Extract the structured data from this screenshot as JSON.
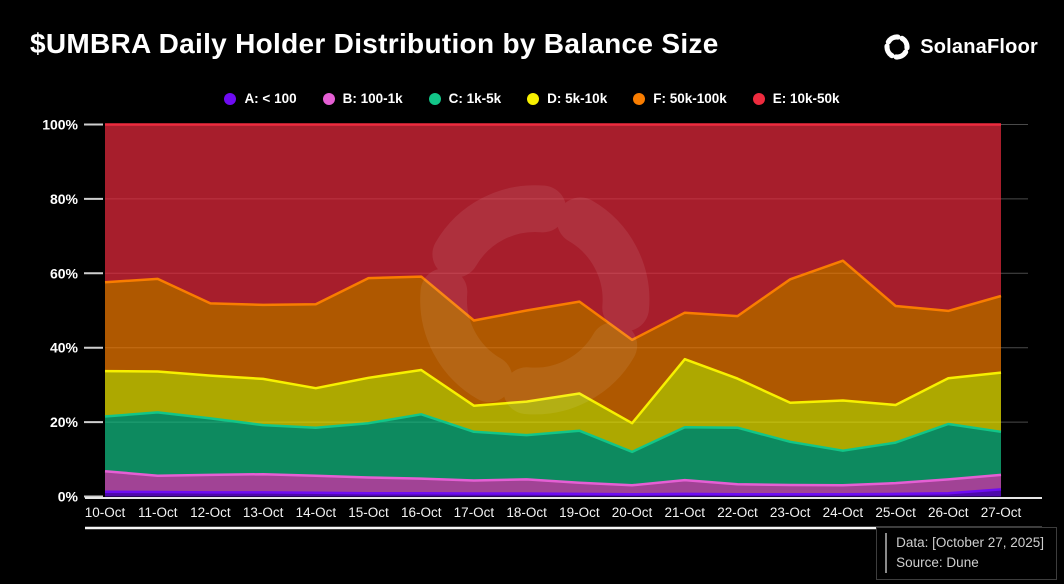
{
  "header": {
    "title": "$UMBRA Daily Holder Distribution by Balance Size",
    "brand": "SolanaFloor"
  },
  "legend": [
    {
      "label": "A: < 100",
      "color": "#6E0BF2"
    },
    {
      "label": "B: 100-1k",
      "color": "#E55FD4"
    },
    {
      "label": "C: 1k-5k",
      "color": "#12C588"
    },
    {
      "label": "D: 5k-10k",
      "color": "#F7F000"
    },
    {
      "label": "F: 50k-100k",
      "color": "#F97D00"
    },
    {
      "label": "E: 10k-50k",
      "color": "#EE2B3E"
    }
  ],
  "chart_data": {
    "type": "area",
    "stacked": true,
    "unit": "%",
    "title": "$UMBRA Daily Holder Distribution by Balance Size",
    "xlabel": "",
    "ylabel": "",
    "ylim": [
      0,
      100
    ],
    "grid": true,
    "legend_position": "top",
    "y_ticks": [
      {
        "label": "0%",
        "value": 0
      },
      {
        "label": "20%",
        "value": 20
      },
      {
        "label": "40%",
        "value": 40
      },
      {
        "label": "60%",
        "value": 60
      },
      {
        "label": "80%",
        "value": 80
      },
      {
        "label": "100%",
        "value": 100
      }
    ],
    "x": [
      "10-Oct",
      "11-Oct",
      "12-Oct",
      "13-Oct",
      "14-Oct",
      "15-Oct",
      "16-Oct",
      "17-Oct",
      "18-Oct",
      "19-Oct",
      "20-Oct",
      "21-Oct",
      "22-Oct",
      "23-Oct",
      "24-Oct",
      "25-Oct",
      "26-Oct",
      "27-Oct"
    ],
    "series": [
      {
        "name": "A: < 100",
        "color": "#6E0BF2",
        "values": [
          1.3,
          1.2,
          1.1,
          1.1,
          1.0,
          0.9,
          0.9,
          0.8,
          0.8,
          0.7,
          0.6,
          0.7,
          0.6,
          0.6,
          0.6,
          0.7,
          0.9,
          1.9
        ]
      },
      {
        "name": "B: 100-1k",
        "color": "#E55FD4",
        "values": [
          5.5,
          4.4,
          4.7,
          4.9,
          4.6,
          4.2,
          3.9,
          3.5,
          3.8,
          3.0,
          2.4,
          3.7,
          2.7,
          2.5,
          2.4,
          2.9,
          3.7,
          3.9
        ]
      },
      {
        "name": "C: 1k-5k",
        "color": "#12C588",
        "values": [
          14.7,
          17.0,
          15.2,
          13.2,
          12.9,
          14.6,
          17.3,
          13.1,
          11.9,
          14.0,
          9.0,
          14.2,
          15.2,
          11.6,
          9.3,
          10.9,
          14.9,
          11.6
        ]
      },
      {
        "name": "D: 5k-10k",
        "color": "#F7F000",
        "values": [
          12.2,
          11.0,
          11.5,
          12.4,
          10.6,
          12.2,
          11.9,
          7.0,
          9.0,
          10.0,
          7.7,
          18.3,
          13.2,
          10.5,
          13.5,
          10.1,
          12.3,
          15.9
        ]
      },
      {
        "name": "F: 50k-100k",
        "color": "#F97D00",
        "values": [
          23.9,
          24.9,
          19.4,
          19.9,
          22.6,
          26.8,
          25.1,
          22.9,
          24.5,
          24.7,
          22.4,
          12.5,
          16.8,
          33.2,
          37.6,
          26.6,
          18.1,
          20.6
        ]
      },
      {
        "name": "E: 10k-50k",
        "color": "#EE2B3E",
        "values": [
          42.4,
          41.5,
          48.1,
          48.5,
          48.3,
          41.3,
          40.9,
          52.7,
          50.0,
          47.6,
          57.9,
          50.6,
          51.5,
          41.6,
          36.6,
          48.8,
          50.1,
          46.1
        ]
      }
    ]
  },
  "footer": {
    "data_label": "Data: [October 27, 2025]",
    "source_label": "Source: Dune"
  }
}
